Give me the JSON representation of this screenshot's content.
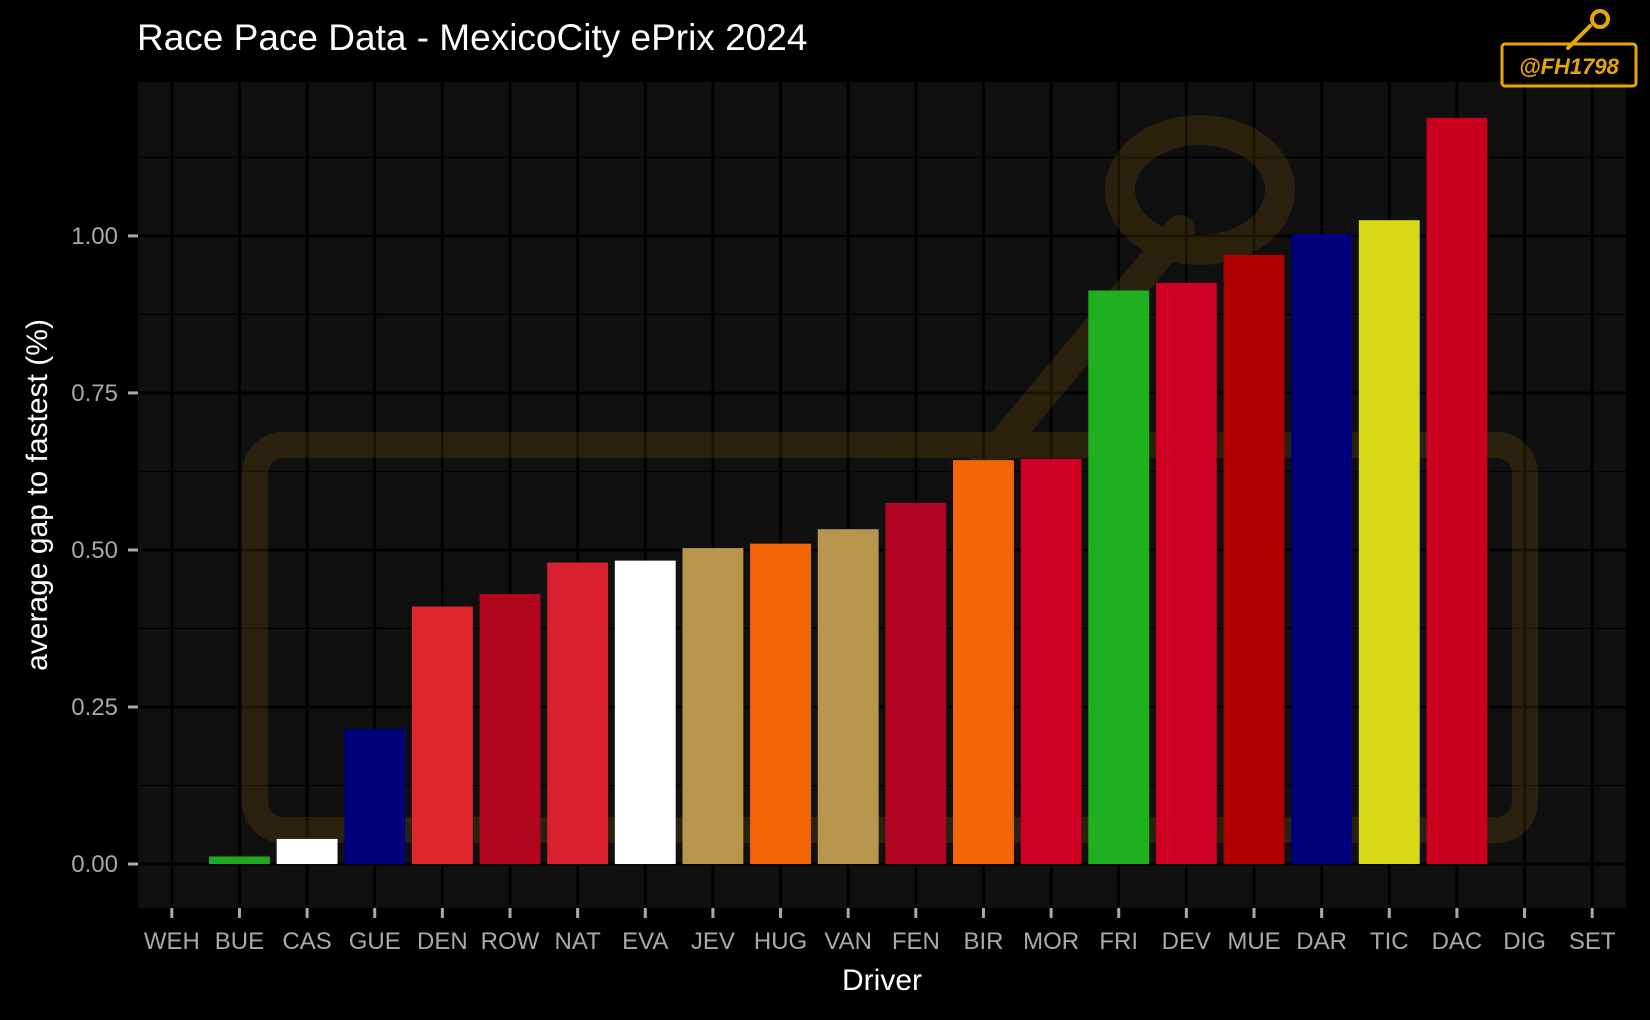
{
  "chart_data": {
    "type": "bar",
    "title": "Race Pace Data - MexicoCity ePrix 2024",
    "xlabel": "Driver",
    "ylabel": "average gap to fastest (%)",
    "categories": [
      "WEH",
      "BUE",
      "CAS",
      "GUE",
      "DEN",
      "ROW",
      "NAT",
      "EVA",
      "JEV",
      "HUG",
      "VAN",
      "FEN",
      "BIR",
      "MOR",
      "FRI",
      "DEV",
      "MUE",
      "DAR",
      "TIC",
      "DAC",
      "DIG",
      "SET"
    ],
    "values": [
      0.0,
      0.012,
      0.04,
      0.215,
      0.41,
      0.43,
      0.48,
      0.483,
      0.503,
      0.51,
      0.533,
      0.575,
      0.643,
      0.645,
      0.913,
      0.925,
      0.97,
      1.003,
      1.025,
      1.188,
      0.0,
      0.0
    ],
    "colors": [
      "#000000",
      "#1ea826",
      "#ffffff",
      "#00007a",
      "#e0262c",
      "#b0061e",
      "#da212f",
      "#ffffff",
      "#b8964e",
      "#f26608",
      "#b8964e",
      "#b00624",
      "#f26608",
      "#d00024",
      "#1fb01f",
      "#d00024",
      "#b00000",
      "#00007a",
      "#d8d814",
      "#c8001e",
      "#000000",
      "#000000"
    ],
    "ylim": [
      -0.07,
      1.245
    ],
    "yticks": [
      0.0,
      0.25,
      0.5,
      0.75,
      1.0
    ],
    "ytick_labels": [
      "0.00",
      "0.25",
      "0.50",
      "0.75",
      "1.00"
    ],
    "grid": true,
    "panel_bg": "#101010",
    "grid_color": "#000000"
  },
  "watermark": {
    "text": "@FH1798",
    "color": "#e8a600"
  }
}
